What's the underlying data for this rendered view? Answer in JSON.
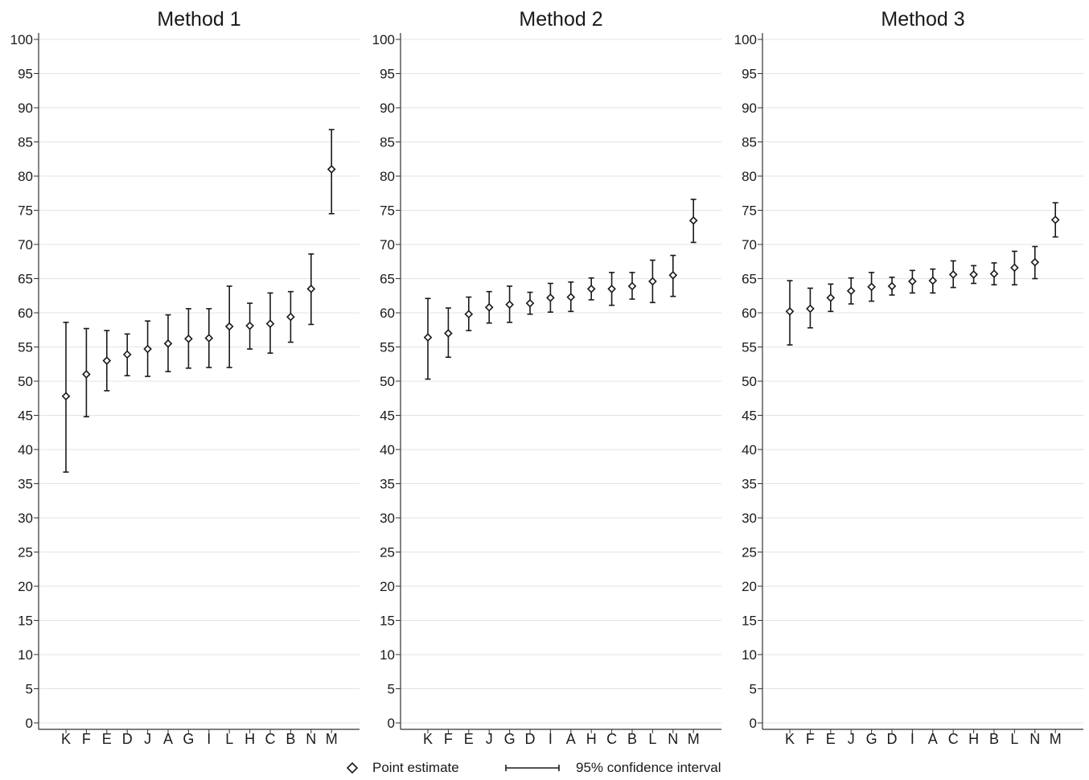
{
  "chart_data": [
    {
      "type": "scatter",
      "title": "Method 1",
      "categories": [
        "K",
        "F",
        "E",
        "D",
        "J",
        "A",
        "G",
        "I",
        "L",
        "H",
        "C",
        "B",
        "N",
        "M"
      ],
      "series": [
        {
          "name": "Point estimate",
          "values": [
            47.8,
            51.0,
            53.0,
            53.9,
            54.7,
            55.5,
            56.2,
            56.3,
            58.0,
            58.1,
            58.4,
            59.4,
            63.5,
            81.0
          ]
        },
        {
          "name": "95% confidence interval",
          "lower": [
            36.7,
            44.8,
            48.6,
            50.8,
            50.7,
            51.4,
            51.9,
            52.0,
            52.0,
            54.7,
            54.1,
            55.7,
            58.3,
            74.5
          ],
          "upper": [
            58.6,
            57.7,
            57.4,
            56.9,
            58.8,
            59.7,
            60.6,
            60.6,
            63.9,
            61.4,
            62.9,
            63.1,
            68.6,
            86.8
          ]
        }
      ],
      "yticks": [
        0,
        5,
        10,
        15,
        20,
        25,
        30,
        35,
        40,
        45,
        50,
        55,
        60,
        65,
        70,
        75,
        80,
        85,
        90,
        95,
        100
      ],
      "ylim": [
        0,
        100
      ],
      "grid": true
    },
    {
      "type": "scatter",
      "title": "Method 2",
      "categories": [
        "K",
        "F",
        "E",
        "J",
        "G",
        "D",
        "I",
        "A",
        "H",
        "C",
        "B",
        "L",
        "N",
        "M"
      ],
      "series": [
        {
          "name": "Point estimate",
          "values": [
            56.4,
            57.0,
            59.8,
            60.8,
            61.2,
            61.4,
            62.2,
            62.3,
            63.5,
            63.5,
            63.9,
            64.6,
            65.5,
            73.5
          ]
        },
        {
          "name": "95% confidence interval",
          "lower": [
            50.3,
            53.5,
            57.4,
            58.5,
            58.6,
            59.8,
            60.1,
            60.2,
            61.9,
            61.1,
            62.0,
            61.5,
            62.4,
            70.3
          ],
          "upper": [
            62.1,
            60.7,
            62.3,
            63.1,
            63.9,
            63.0,
            64.3,
            64.5,
            65.1,
            65.9,
            65.9,
            67.7,
            68.4,
            76.6
          ]
        }
      ],
      "yticks": [
        0,
        5,
        10,
        15,
        20,
        25,
        30,
        35,
        40,
        45,
        50,
        55,
        60,
        65,
        70,
        75,
        80,
        85,
        90,
        95,
        100
      ],
      "ylim": [
        0,
        100
      ],
      "grid": true
    },
    {
      "type": "scatter",
      "title": "Method 3",
      "categories": [
        "K",
        "F",
        "E",
        "J",
        "G",
        "D",
        "I",
        "A",
        "C",
        "H",
        "B",
        "L",
        "N",
        "M"
      ],
      "series": [
        {
          "name": "Point estimate",
          "values": [
            60.2,
            60.6,
            62.2,
            63.2,
            63.8,
            63.9,
            64.6,
            64.7,
            65.6,
            65.6,
            65.7,
            66.6,
            67.4,
            73.6
          ]
        },
        {
          "name": "95% confidence interval",
          "lower": [
            55.3,
            57.8,
            60.2,
            61.3,
            61.7,
            62.6,
            62.9,
            62.9,
            63.7,
            64.3,
            64.1,
            64.1,
            65.0,
            71.1
          ],
          "upper": [
            64.7,
            63.6,
            64.2,
            65.1,
            65.9,
            65.2,
            66.2,
            66.4,
            67.6,
            66.9,
            67.3,
            69.0,
            69.7,
            76.1
          ]
        }
      ],
      "yticks": [
        0,
        5,
        10,
        15,
        20,
        25,
        30,
        35,
        40,
        45,
        50,
        55,
        60,
        65,
        70,
        75,
        80,
        85,
        90,
        95,
        100
      ],
      "ylim": [
        0,
        100
      ],
      "grid": true
    }
  ],
  "legend": {
    "point_label": "Point estimate",
    "ci_label": "95% confidence interval",
    "position": "bottom"
  },
  "colors": {
    "marks": "#1a1a1a",
    "grid": "#e3e3e3",
    "axis": "#333333",
    "background": "#ffffff"
  }
}
